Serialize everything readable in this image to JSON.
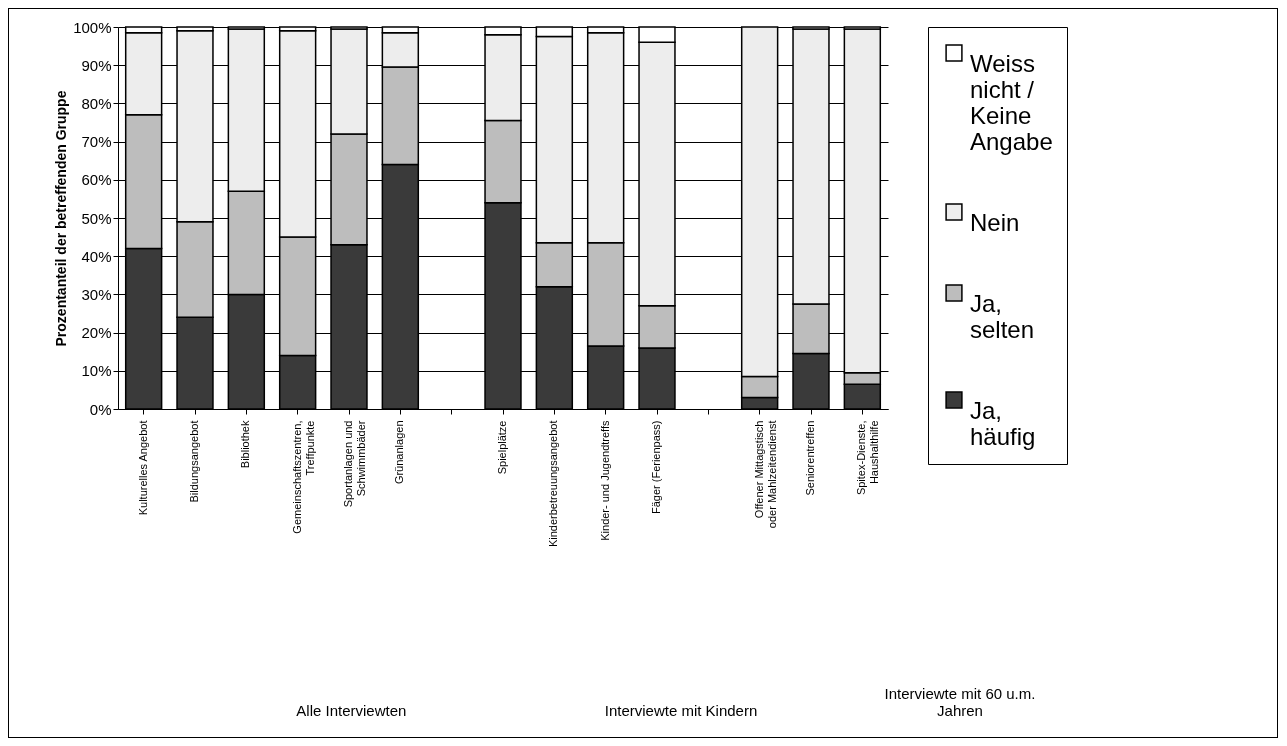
{
  "chart_data": {
    "type": "bar",
    "stacked": true,
    "ylabel": "Prozentanteil der betreffenden Gruppe",
    "categories": [
      "Kulturelles Angebot",
      "Bildungsangebot",
      "Bibliothek",
      "Gemeinschaftszentren, Treffpunkte",
      "Sportanlagen und Schwimmbäder",
      "Grünanlagen",
      null,
      "Spielplätze",
      "Kinderbetreuungsangebot",
      "Kinder- und Jugendtreffs",
      "Fäger (Ferienpass)",
      null,
      "Offener Mittagstisch oder Mahlzeitendienst",
      "Seniorentreffen",
      "Spitex-Dienste, Haushalthilfe"
    ],
    "series": [
      {
        "name": "Ja, häufig",
        "color": "#3a3a3a",
        "values": [
          42,
          24,
          30,
          14,
          43,
          64,
          null,
          54,
          32,
          16.5,
          16,
          null,
          3,
          14.5,
          6.5
        ]
      },
      {
        "name": "Ja, selten",
        "color": "#bdbdbd",
        "values": [
          35,
          25,
          27,
          31,
          29,
          25.5,
          null,
          21.5,
          11.5,
          27,
          11,
          null,
          5.5,
          13,
          3
        ]
      },
      {
        "name": "Nein",
        "color": "#ededed",
        "values": [
          21.5,
          50,
          42.5,
          54,
          27.5,
          9,
          null,
          22.5,
          54,
          55,
          69,
          null,
          91.5,
          72,
          90
        ]
      },
      {
        "name": "Weiss nicht / Keine Angabe",
        "color": "#ffffff",
        "values": [
          1.5,
          1,
          0.5,
          1,
          0.5,
          1.5,
          null,
          2,
          2.5,
          1.5,
          4,
          null,
          0,
          0.5,
          0.5
        ]
      }
    ],
    "ylim": [
      0,
      100
    ],
    "yticks": [
      {
        "value": 0,
        "label": "0%"
      },
      {
        "value": 10,
        "label": "10%"
      },
      {
        "value": 20,
        "label": "20%"
      },
      {
        "value": 30,
        "label": "30%"
      },
      {
        "value": 40,
        "label": "40%"
      },
      {
        "value": 50,
        "label": "50%"
      },
      {
        "value": 60,
        "label": "60%"
      },
      {
        "value": 70,
        "label": "70%"
      },
      {
        "value": 80,
        "label": "80%"
      },
      {
        "value": 90,
        "label": "90%"
      },
      {
        "value": 100,
        "label": "100%"
      }
    ],
    "grid": "y",
    "legend": "right",
    "annotations": [
      "Alle Interviewten",
      "Interviewte mit Kindern",
      "Interviewte mit 60 u.m. Jahren"
    ]
  }
}
